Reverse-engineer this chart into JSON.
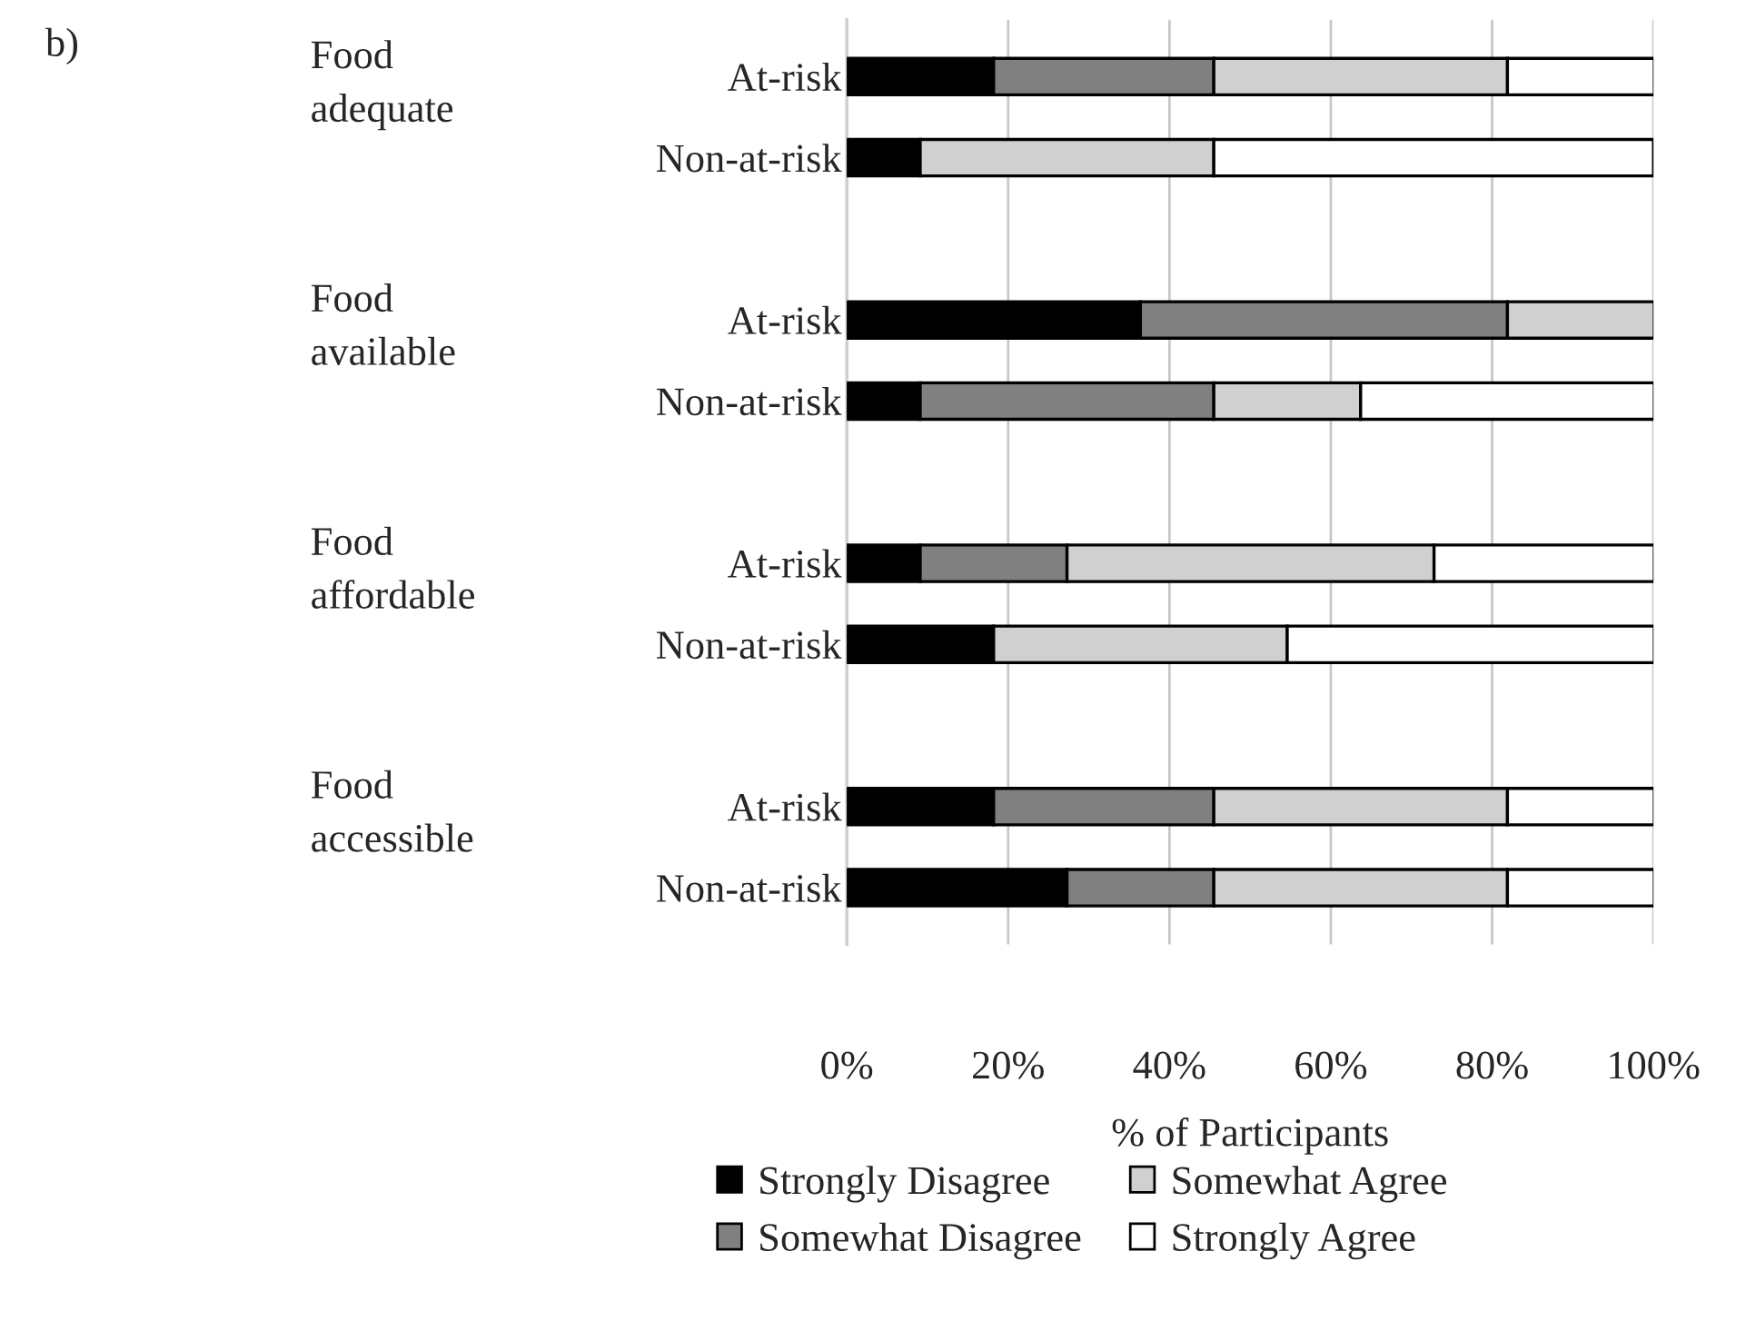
{
  "chart_data": {
    "type": "bar",
    "orientation": "horizontal",
    "stacked": true,
    "categories": [
      "At-risk",
      "Non-at-risk",
      null,
      "At-risk",
      "Non-at-risk",
      null,
      "At-risk",
      "Non-at-risk",
      null,
      "At-risk",
      "Non-at-risk"
    ],
    "series": [
      {
        "name": "Strongly Disagree",
        "color": "#000000",
        "values": [
          18.2,
          9.1,
          null,
          36.4,
          9.1,
          null,
          9.1,
          18.2,
          null,
          18.2,
          27.3
        ]
      },
      {
        "name": "Somewhat Disagree",
        "color": "#808080",
        "values": [
          27.3,
          0,
          null,
          45.5,
          36.4,
          null,
          18.2,
          0,
          null,
          27.3,
          18.2
        ]
      },
      {
        "name": "Somewhat Agree",
        "color": "#d0d0d0",
        "values": [
          36.4,
          36.4,
          null,
          18.2,
          18.2,
          null,
          45.5,
          36.4,
          null,
          36.4,
          36.4
        ]
      },
      {
        "name": "Strongly Agree",
        "color": "#ffffff",
        "values": [
          18.2,
          54.5,
          null,
          0,
          36.4,
          null,
          27.3,
          45.5,
          null,
          18.2,
          18.2
        ]
      }
    ],
    "xlim": [
      0,
      100
    ],
    "xticks": [
      {
        "value": 0,
        "label": "0%"
      },
      {
        "value": 20,
        "label": "20%"
      },
      {
        "value": 40,
        "label": "40%"
      },
      {
        "value": 60,
        "label": "60%"
      },
      {
        "value": 80,
        "label": "80%"
      },
      {
        "value": 100,
        "label": "100%"
      }
    ],
    "xlabel": "% of Participants",
    "grid": "x",
    "legend": "bottom",
    "annotations": [
      "b)",
      "Food\nadequate",
      "Food\navailable",
      "Food\naffordable",
      "Food\naccessible"
    ]
  }
}
